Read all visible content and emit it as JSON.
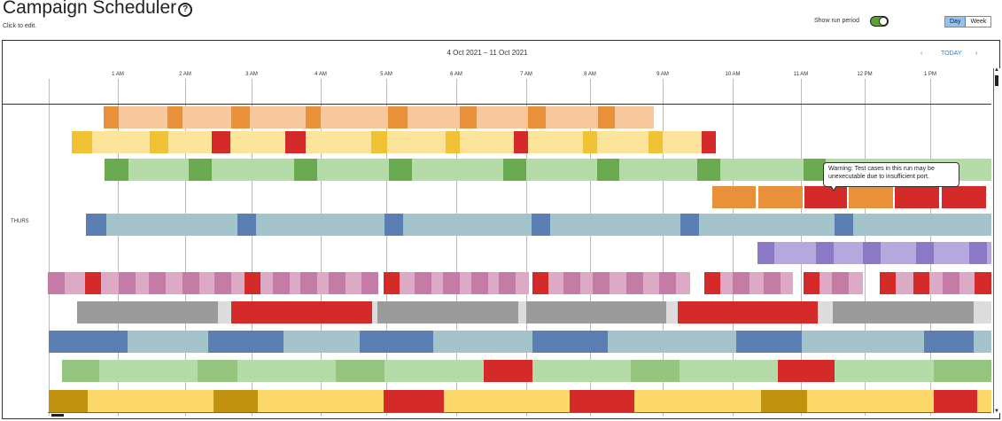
{
  "header": {
    "title": "Campaign Scheduler",
    "help_icon": "?",
    "subtitle": "Click to edit.",
    "show_run_label": "Show run period",
    "view_day": "Day",
    "view_week": "Week"
  },
  "timeline": {
    "range": "4 Oct 2021 – 11 Oct 2021",
    "prev": "‹",
    "today": "TODAY",
    "next": "›",
    "ticks": [
      "1 AM",
      "2 AM",
      "3 AM",
      "4 AM",
      "5 AM",
      "6 AM",
      "7 AM",
      "8 AM",
      "9 AM",
      "10 AM",
      "11 AM",
      "12 PM",
      "1 PM"
    ],
    "day_label": "THURS"
  },
  "tooltip": {
    "text": "Warning: Test cases in this run may be unexecutable due to insufficient port."
  },
  "colors": {
    "orange": [
      "#f8c79b",
      "#e8913a"
    ],
    "yellow": [
      "#fce49b",
      "#f2c235"
    ],
    "green": [
      "#b5dba9",
      "#6aab52"
    ],
    "teal": [
      "#a4c4cb",
      "#5b7fb3"
    ],
    "purple": [
      "#b5a8dc",
      "#8c79c6"
    ],
    "pink": [
      "#ddaac6",
      "#c47ca6"
    ],
    "gray": [
      "#9b9b9b",
      "#dcdcdc"
    ],
    "blue": [
      "#a4c4cb",
      "#5b7fb3"
    ],
    "green2": [
      "#b5dba9",
      "#95c57f"
    ],
    "gold": [
      "#fcd86a",
      "#c19110"
    ],
    "fail": "#d42a2a"
  }
}
